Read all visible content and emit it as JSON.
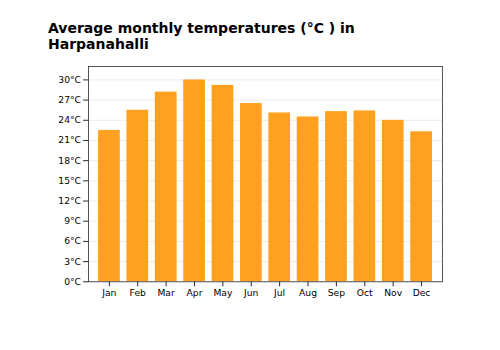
{
  "chart_data": {
    "type": "bar",
    "title": "Average monthly temperatures (°C ) in Harpanahalli",
    "categories": [
      "Jan",
      "Feb",
      "Mar",
      "Apr",
      "May",
      "Jun",
      "Jul",
      "Aug",
      "Sep",
      "Oct",
      "Nov",
      "Dec"
    ],
    "values": [
      22.5,
      25.5,
      28.2,
      30.0,
      29.2,
      26.5,
      25.1,
      24.5,
      25.3,
      25.4,
      24.0,
      22.3
    ],
    "color": "#FFA020",
    "ylim": [
      0,
      32
    ],
    "yticks": [
      {
        "value": 0,
        "label": "0°C"
      },
      {
        "value": 3,
        "label": "3°C"
      },
      {
        "value": 6,
        "label": "6°C"
      },
      {
        "value": 9,
        "label": "9°C"
      },
      {
        "value": 12,
        "label": "12°C"
      },
      {
        "value": 15,
        "label": "15°C"
      },
      {
        "value": 18,
        "label": "18°C"
      },
      {
        "value": 21,
        "label": "21°C"
      },
      {
        "value": 24,
        "label": "24°C"
      },
      {
        "value": 27,
        "label": "27°C"
      },
      {
        "value": 30,
        "label": "30°C"
      }
    ],
    "grid": true
  }
}
